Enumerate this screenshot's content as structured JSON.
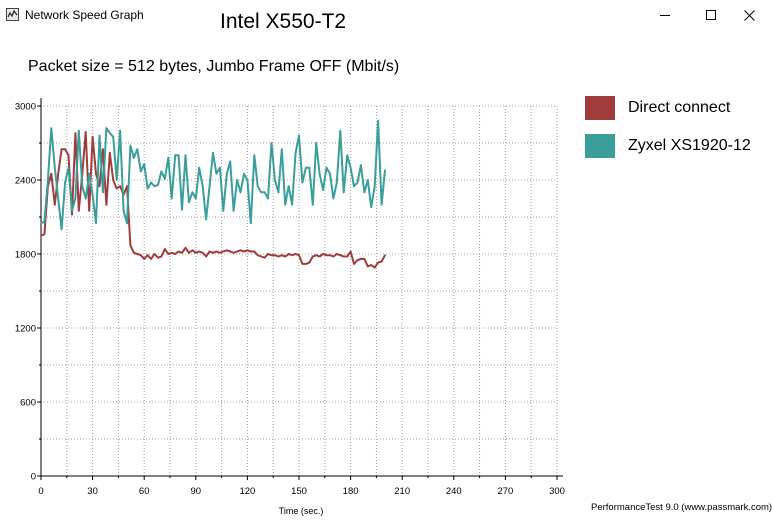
{
  "window": {
    "title": "Network Speed Graph",
    "icons": {
      "app": "network-graph-icon",
      "minimize": "minimize-icon",
      "maximize": "maximize-icon",
      "close": "close-icon"
    }
  },
  "footer": "PerformanceTest 9.0 (www.passmark.com)",
  "colors": {
    "direct": "#a03c3c",
    "zyxel": "#3a9e9a",
    "grid": "#a0a0a0",
    "axis": "#000000"
  },
  "chart_data": {
    "type": "line",
    "title": "Intel X550-T2",
    "subtitle": "Packet size = 512 bytes, Jumbo Frame OFF (Mbit/s)",
    "xlabel": "Time (sec.)",
    "ylabel": "",
    "xlim": [
      0,
      300
    ],
    "ylim": [
      0,
      3000
    ],
    "xticks": [
      "0",
      "30",
      "60",
      "90",
      "120",
      "150",
      "180",
      "210",
      "240",
      "270",
      "300"
    ],
    "yticks": [
      "0",
      "600",
      "1200",
      "1800",
      "2400",
      "3000"
    ],
    "grid": true,
    "legend_position": "right",
    "series": [
      {
        "name": "Direct connect",
        "color": "#a03c3c",
        "x": [
          0,
          2,
          4,
          6,
          8,
          10,
          12,
          14,
          16,
          18,
          20,
          22,
          24,
          26,
          28,
          30,
          32,
          34,
          36,
          38,
          40,
          42,
          44,
          46,
          48,
          50,
          52,
          54,
          56,
          58,
          60,
          62,
          64,
          66,
          68,
          70,
          72,
          74,
          76,
          78,
          80,
          82,
          84,
          86,
          88,
          90,
          92,
          94,
          96,
          98,
          100,
          102,
          104,
          106,
          108,
          110,
          112,
          114,
          116,
          118,
          120,
          122,
          124,
          126,
          128,
          130,
          132,
          134,
          136,
          138,
          140,
          142,
          144,
          146,
          148,
          150,
          152,
          154,
          156,
          158,
          160,
          162,
          164,
          166,
          168,
          170,
          172,
          174,
          176,
          178,
          180,
          182,
          184,
          186,
          188,
          190,
          192,
          194,
          196,
          198,
          200
        ],
        "values": [
          1950,
          1960,
          2350,
          2450,
          2200,
          2450,
          2650,
          2650,
          2600,
          2120,
          2780,
          2150,
          2450,
          2790,
          2150,
          2750,
          2450,
          2350,
          2650,
          2200,
          2620,
          2400,
          2330,
          2350,
          2280,
          2350,
          1870,
          1810,
          1800,
          1790,
          1760,
          1790,
          1760,
          1800,
          1770,
          1780,
          1840,
          1800,
          1810,
          1800,
          1820,
          1810,
          1850,
          1810,
          1830,
          1810,
          1820,
          1810,
          1780,
          1820,
          1810,
          1820,
          1810,
          1820,
          1830,
          1820,
          1810,
          1820,
          1830,
          1820,
          1830,
          1820,
          1820,
          1790,
          1780,
          1770,
          1800,
          1790,
          1790,
          1780,
          1790,
          1780,
          1800,
          1790,
          1800,
          1790,
          1720,
          1720,
          1730,
          1780,
          1790,
          1780,
          1800,
          1790,
          1790,
          1780,
          1800,
          1790,
          1780,
          1780,
          1820,
          1720,
          1750,
          1760,
          1760,
          1700,
          1710,
          1690,
          1730,
          1740,
          1790
        ]
      },
      {
        "name": "Zyxel XS1920-12",
        "color": "#3a9e9a",
        "x": [
          0,
          2,
          4,
          6,
          8,
          10,
          12,
          14,
          16,
          18,
          20,
          22,
          24,
          26,
          28,
          30,
          32,
          34,
          36,
          38,
          40,
          42,
          44,
          46,
          48,
          50,
          52,
          54,
          56,
          58,
          60,
          62,
          64,
          66,
          68,
          70,
          72,
          74,
          76,
          78,
          80,
          82,
          84,
          86,
          88,
          90,
          92,
          94,
          96,
          98,
          100,
          102,
          104,
          106,
          108,
          110,
          112,
          114,
          116,
          118,
          120,
          122,
          124,
          126,
          128,
          130,
          132,
          134,
          136,
          138,
          140,
          142,
          144,
          146,
          148,
          150,
          152,
          154,
          156,
          158,
          160,
          162,
          164,
          166,
          168,
          170,
          172,
          174,
          176,
          178,
          180,
          182,
          184,
          186,
          188,
          190,
          192,
          194,
          196,
          198,
          200
        ],
        "values": [
          2050,
          2060,
          2400,
          2820,
          2500,
          2250,
          2000,
          2380,
          2500,
          2150,
          2250,
          2800,
          2350,
          2250,
          2450,
          2280,
          2050,
          2760,
          2300,
          2820,
          2780,
          2750,
          2400,
          2800,
          2150,
          2050,
          2680,
          2580,
          2650,
          2470,
          2530,
          2330,
          2380,
          2350,
          2360,
          2470,
          2410,
          2580,
          2250,
          2600,
          2600,
          2160,
          2600,
          2220,
          2300,
          2250,
          2500,
          2350,
          2080,
          2350,
          2620,
          2450,
          2500,
          2150,
          2450,
          2550,
          2150,
          2400,
          2300,
          2450,
          2400,
          2050,
          2600,
          2350,
          2300,
          2300,
          2250,
          2700,
          2400,
          2300,
          2650,
          2200,
          2350,
          2200,
          2620,
          2760,
          2380,
          2500,
          2500,
          2200,
          2700,
          2450,
          2320,
          2500,
          2450,
          2250,
          2380,
          2800,
          2300,
          2600,
          2500,
          2350,
          2380,
          2520,
          2300,
          2400,
          2180,
          2350,
          2880,
          2200,
          2480
        ]
      }
    ]
  }
}
